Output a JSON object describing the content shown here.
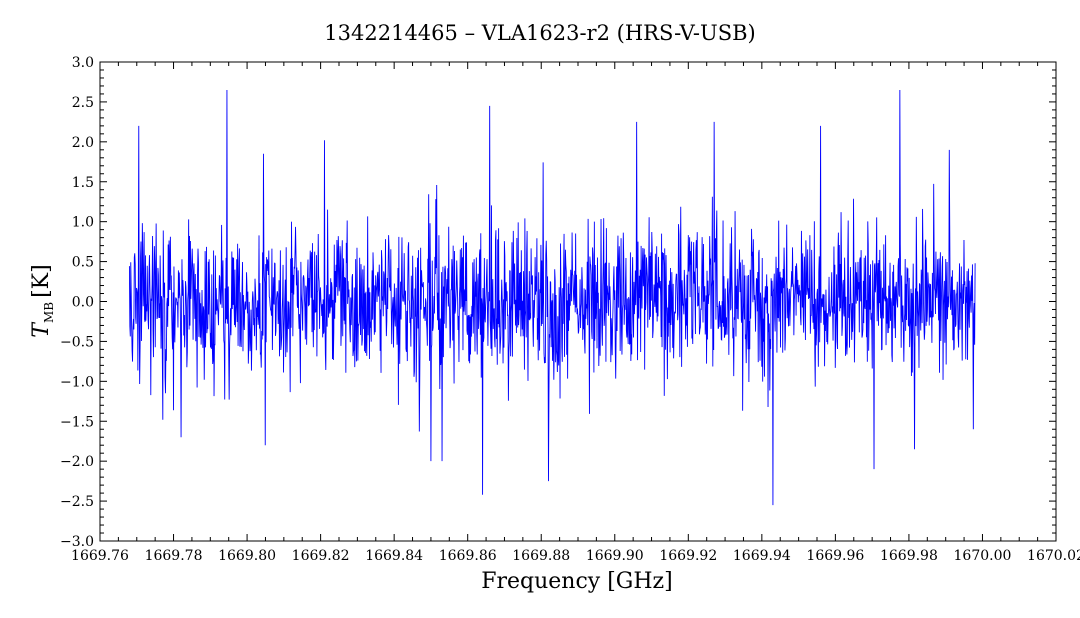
{
  "chart_data": {
    "type": "line",
    "title": "1342214465 – VLA1623-r2 (HRS-V-USB)",
    "xlabel": "Frequency [GHz]",
    "ylabel": "T",
    "ylabel_sub": "MB",
    "ylabel_unit": "[K]",
    "xlim": [
      1669.76,
      1670.02
    ],
    "ylim": [
      -3.0,
      3.0
    ],
    "x_ticks": [
      "1669.76",
      "1669.78",
      "1669.80",
      "1669.82",
      "1669.84",
      "1669.86",
      "1669.88",
      "1669.90",
      "1669.92",
      "1669.94",
      "1669.96",
      "1669.98",
      "1670.00",
      "1670.02"
    ],
    "y_ticks": [
      "3.0",
      "2.5",
      "2.0",
      "1.5",
      "1.0",
      "0.5",
      "0.0",
      "−0.5",
      "−1.0",
      "−1.5",
      "−2.0",
      "−2.5",
      "−3.0"
    ],
    "grid": false,
    "legend": "none",
    "series": [
      {
        "color": "#0000ff",
        "x_start": 1669.768,
        "x_end": 1669.998,
        "noise_rms": 0.6,
        "peaks": [
          {
            "x": 1669.7705,
            "y": 2.2
          },
          {
            "x": 1669.7945,
            "y": 2.65
          },
          {
            "x": 1669.8045,
            "y": 1.85
          },
          {
            "x": 1669.821,
            "y": 2.02
          },
          {
            "x": 1669.866,
            "y": 2.45
          },
          {
            "x": 1669.882,
            "y": 2.35
          },
          {
            "x": 1669.906,
            "y": 2.25
          },
          {
            "x": 1669.927,
            "y": 2.25
          },
          {
            "x": 1669.956,
            "y": 2.2
          },
          {
            "x": 1669.9775,
            "y": 2.65
          },
          {
            "x": 1669.991,
            "y": 1.9
          }
        ],
        "troughs": [
          {
            "x": 1669.782,
            "y": -1.7
          },
          {
            "x": 1669.805,
            "y": -1.8
          },
          {
            "x": 1669.85,
            "y": -2.0
          },
          {
            "x": 1669.853,
            "y": -2.0
          },
          {
            "x": 1669.864,
            "y": -2.42
          },
          {
            "x": 1669.882,
            "y": -2.25
          },
          {
            "x": 1669.943,
            "y": -2.55
          },
          {
            "x": 1669.9705,
            "y": -2.1
          },
          {
            "x": 1669.9815,
            "y": -1.85
          },
          {
            "x": 1669.9975,
            "y": -1.6
          }
        ]
      }
    ]
  }
}
